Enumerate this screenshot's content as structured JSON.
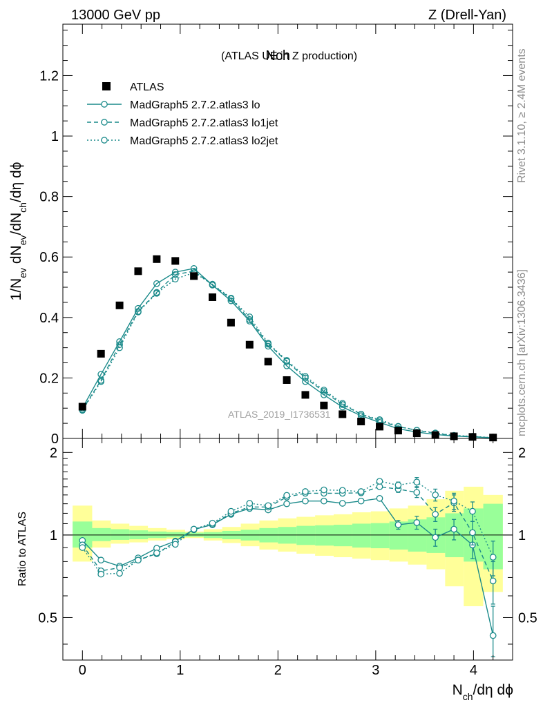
{
  "header": {
    "left": "13000 GeV pp",
    "right": "Z (Drell-Yan)"
  },
  "side_labels": {
    "rivet": "Rivet 3.1.10, ≥ 2.4M events",
    "mcplots": "mcplots.cern.ch [arXiv:1306.3436]"
  },
  "watermark": "ATLAS_2019_I1736531",
  "colors": {
    "mc": "#1a8a8a",
    "data": "#000000",
    "band_inner": "#99ff99",
    "band_outer": "#ffff99"
  },
  "chart_data": [
    {
      "type": "scatter",
      "title": "Nch",
      "subtitle": "(ATLAS UE in Z production)",
      "xlabel": "N_ch/dη dφ",
      "ylabel": "1/N_ev dN_ev/dN_ch/dη dφ",
      "xlim": [
        -0.2,
        4.4
      ],
      "ylim": [
        0,
        1.37
      ],
      "yticks": [
        "0",
        "0.2",
        "0.4",
        "0.6",
        "0.8",
        "1",
        "1.2"
      ],
      "legend_position": "top-left",
      "x": [
        0.0,
        0.19,
        0.38,
        0.57,
        0.76,
        0.95,
        1.14,
        1.33,
        1.52,
        1.71,
        1.9,
        2.09,
        2.28,
        2.47,
        2.66,
        2.85,
        3.04,
        3.23,
        3.42,
        3.61,
        3.8,
        3.99,
        4.2
      ],
      "series": [
        {
          "name": "ATLAS",
          "style": "markers",
          "values": [
            0.105,
            0.28,
            0.44,
            0.553,
            0.593,
            0.587,
            0.537,
            0.467,
            0.383,
            0.31,
            0.254,
            0.193,
            0.144,
            0.109,
            0.08,
            0.056,
            0.039,
            0.026,
            0.017,
            0.011,
            0.007,
            0.005,
            0.003
          ]
        },
        {
          "name": "MadGraph5 2.7.2.atlas3 lo",
          "style": "solid",
          "values": [
            0.1,
            0.212,
            0.32,
            0.43,
            0.512,
            0.55,
            0.562,
            0.507,
            0.455,
            0.388,
            0.305,
            0.24,
            0.188,
            0.144,
            0.104,
            0.075,
            0.053,
            0.032,
            0.021,
            0.013,
            0.008,
            0.005,
            0.002
          ]
        },
        {
          "name": "MadGraph5 2.7.2.atlas3 lo1jet",
          "style": "dashed",
          "values": [
            0.095,
            0.192,
            0.31,
            0.42,
            0.483,
            0.542,
            0.553,
            0.508,
            0.462,
            0.393,
            0.312,
            0.255,
            0.2,
            0.155,
            0.112,
            0.08,
            0.058,
            0.039,
            0.027,
            0.017,
            0.009,
            0.006,
            0.002
          ]
        },
        {
          "name": "MadGraph5 2.7.2.atlas3 lo2jet",
          "style": "dotted",
          "values": [
            0.093,
            0.188,
            0.3,
            0.418,
            0.48,
            0.527,
            0.548,
            0.51,
            0.464,
            0.402,
            0.315,
            0.258,
            0.205,
            0.16,
            0.116,
            0.08,
            0.062,
            0.04,
            0.027,
            0.018,
            0.01,
            0.007,
            0.0025
          ]
        }
      ]
    },
    {
      "type": "scatter",
      "ylabel": "Ratio to ATLAS",
      "xlabel": "N_ch/dη dφ",
      "xlim": [
        -0.2,
        4.4
      ],
      "ylim": [
        0.35,
        2.25
      ],
      "xticks": [
        "0",
        "1",
        "2",
        "3",
        "4"
      ],
      "yticks": [
        "0.5",
        "1",
        "2"
      ],
      "x": [
        0.0,
        0.19,
        0.38,
        0.57,
        0.76,
        0.95,
        1.14,
        1.33,
        1.52,
        1.71,
        1.9,
        2.09,
        2.28,
        2.47,
        2.66,
        2.85,
        3.04,
        3.23,
        3.42,
        3.61,
        3.8,
        3.99,
        4.2
      ],
      "band_edges": [
        -0.1,
        0.1,
        0.29,
        0.48,
        0.67,
        0.86,
        1.05,
        1.24,
        1.43,
        1.62,
        1.81,
        2.0,
        2.19,
        2.38,
        2.57,
        2.76,
        2.95,
        3.14,
        3.33,
        3.52,
        3.71,
        3.9,
        4.1,
        4.3
      ],
      "band_inner_lo": [
        0.9,
        0.95,
        0.96,
        0.965,
        0.975,
        0.98,
        0.985,
        0.975,
        0.965,
        0.955,
        0.94,
        0.93,
        0.92,
        0.915,
        0.91,
        0.9,
        0.895,
        0.885,
        0.87,
        0.86,
        0.83,
        0.8,
        0.75
      ],
      "band_inner_hi": [
        1.12,
        1.06,
        1.05,
        1.04,
        1.03,
        1.025,
        1.02,
        1.025,
        1.035,
        1.045,
        1.06,
        1.07,
        1.08,
        1.085,
        1.09,
        1.1,
        1.105,
        1.12,
        1.14,
        1.16,
        1.2,
        1.25,
        1.3
      ],
      "band_outer_lo": [
        0.8,
        0.9,
        0.93,
        0.94,
        0.955,
        0.965,
        0.975,
        0.955,
        0.935,
        0.91,
        0.885,
        0.87,
        0.855,
        0.84,
        0.83,
        0.82,
        0.81,
        0.8,
        0.78,
        0.75,
        0.65,
        0.55,
        0.62
      ],
      "band_outer_hi": [
        1.28,
        1.13,
        1.1,
        1.08,
        1.06,
        1.045,
        1.03,
        1.05,
        1.07,
        1.1,
        1.13,
        1.15,
        1.165,
        1.18,
        1.19,
        1.21,
        1.22,
        1.25,
        1.28,
        1.35,
        1.45,
        1.5,
        1.4
      ],
      "series": [
        {
          "name": "MadGraph5 2.7.2.atlas3 lo",
          "style": "solid",
          "values": [
            0.955,
            0.81,
            0.77,
            0.825,
            0.895,
            0.95,
            1.05,
            1.09,
            1.19,
            1.25,
            1.235,
            1.3,
            1.33,
            1.33,
            1.305,
            1.33,
            1.36,
            1.09,
            1.11,
            0.98,
            1.05,
            0.92,
            0.43
          ],
          "errors": [
            0.01,
            0.01,
            0.01,
            0.01,
            0.01,
            0.01,
            0.01,
            0.01,
            0.01,
            0.01,
            0.015,
            0.015,
            0.02,
            0.02,
            0.02,
            0.025,
            0.03,
            0.04,
            0.06,
            0.07,
            0.09,
            0.1,
            0.12
          ]
        },
        {
          "name": "MadGraph5 2.7.2.atlas3 lo1jet",
          "style": "dashed",
          "values": [
            0.92,
            0.74,
            0.76,
            0.81,
            0.855,
            0.945,
            1.045,
            1.095,
            1.2,
            1.265,
            1.265,
            1.375,
            1.42,
            1.42,
            1.42,
            1.425,
            1.5,
            1.47,
            1.43,
            1.19,
            1.31,
            1.02,
            0.68
          ],
          "errors": [
            0.01,
            0.01,
            0.01,
            0.01,
            0.01,
            0.01,
            0.01,
            0.01,
            0.01,
            0.01,
            0.015,
            0.015,
            0.02,
            0.02,
            0.02,
            0.025,
            0.03,
            0.04,
            0.06,
            0.07,
            0.09,
            0.1,
            0.12
          ]
        },
        {
          "name": "MadGraph5 2.7.2.atlas3 lo2jet",
          "style": "dotted",
          "values": [
            0.9,
            0.72,
            0.725,
            0.81,
            0.86,
            0.925,
            1.05,
            1.105,
            1.22,
            1.305,
            1.28,
            1.395,
            1.44,
            1.46,
            1.455,
            1.44,
            1.57,
            1.52,
            1.56,
            1.4,
            1.33,
            1.22,
            0.83
          ],
          "errors": [
            0.01,
            0.01,
            0.01,
            0.01,
            0.01,
            0.01,
            0.01,
            0.01,
            0.01,
            0.01,
            0.015,
            0.015,
            0.02,
            0.02,
            0.02,
            0.025,
            0.03,
            0.04,
            0.06,
            0.07,
            0.09,
            0.1,
            0.12
          ]
        }
      ]
    }
  ]
}
